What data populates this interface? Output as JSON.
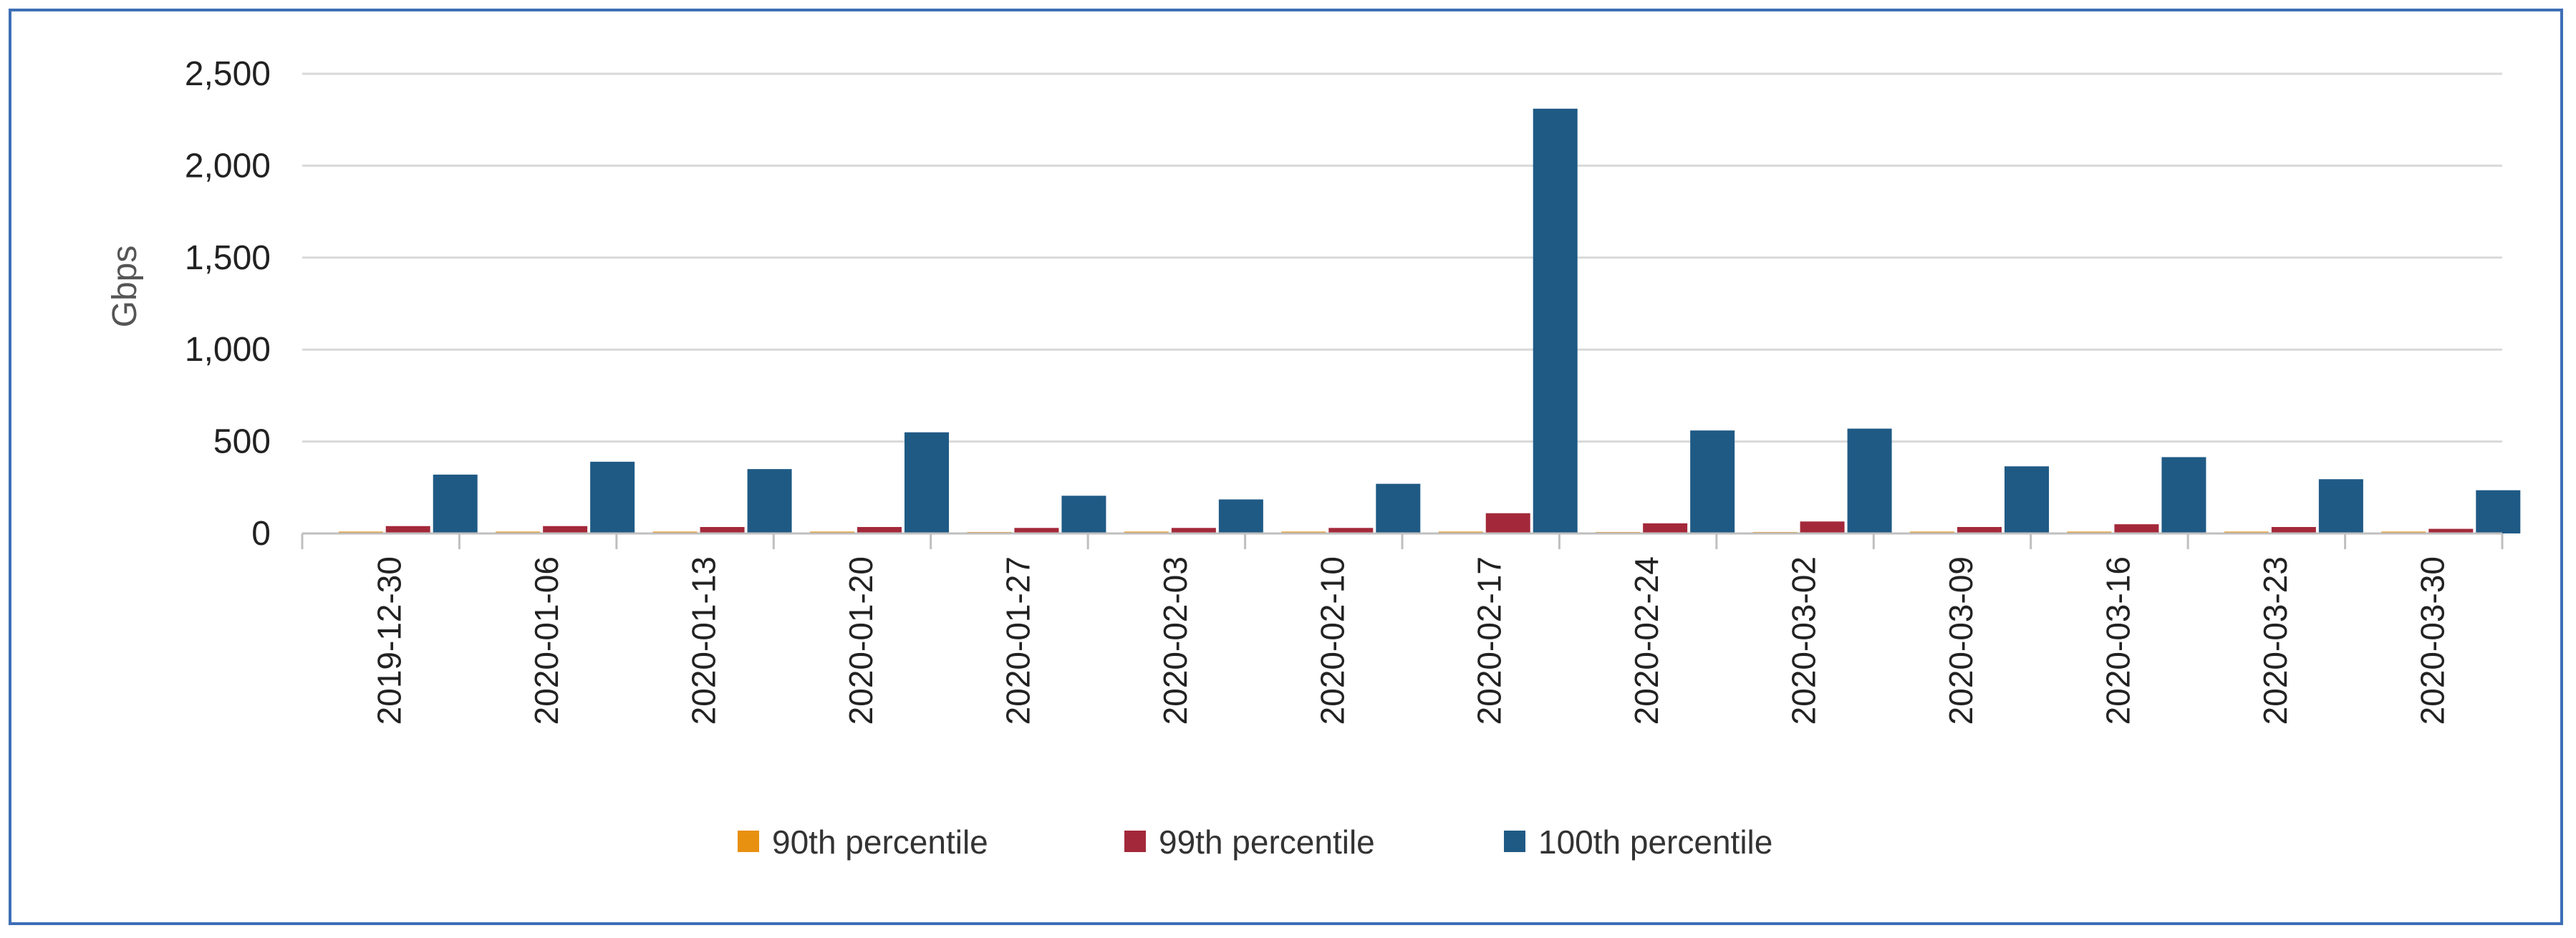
{
  "chart_data": {
    "type": "bar",
    "title": "",
    "xlabel": "",
    "ylabel": "Gbps",
    "ylim": [
      0,
      2500
    ],
    "yticks": [
      0,
      500,
      1000,
      1500,
      2000,
      2500
    ],
    "ytick_labels": [
      "0",
      "500",
      "1,000",
      "1,500",
      "2,000",
      "2,500"
    ],
    "grid": true,
    "legend_position": "bottom",
    "categories": [
      "2019-12-30",
      "2020-01-06",
      "2020-01-13",
      "2020-01-20",
      "2020-01-27",
      "2020-02-03",
      "2020-02-10",
      "2020-02-17",
      "2020-02-24",
      "2020-03-02",
      "2020-03-09",
      "2020-03-16",
      "2020-03-23",
      "2020-03-30"
    ],
    "series": [
      {
        "name": "90th percentile",
        "color": "#e8900f",
        "values": [
          10,
          10,
          10,
          10,
          8,
          10,
          10,
          10,
          8,
          8,
          10,
          10,
          10,
          10
        ]
      },
      {
        "name": "99th percentile",
        "color": "#a3293a",
        "values": [
          40,
          40,
          35,
          35,
          30,
          30,
          30,
          110,
          55,
          65,
          35,
          50,
          35,
          25
        ]
      },
      {
        "name": "100th percentile",
        "color": "#1f5a85",
        "values": [
          320,
          390,
          350,
          550,
          205,
          185,
          270,
          2310,
          560,
          570,
          365,
          415,
          295,
          235
        ]
      }
    ]
  }
}
